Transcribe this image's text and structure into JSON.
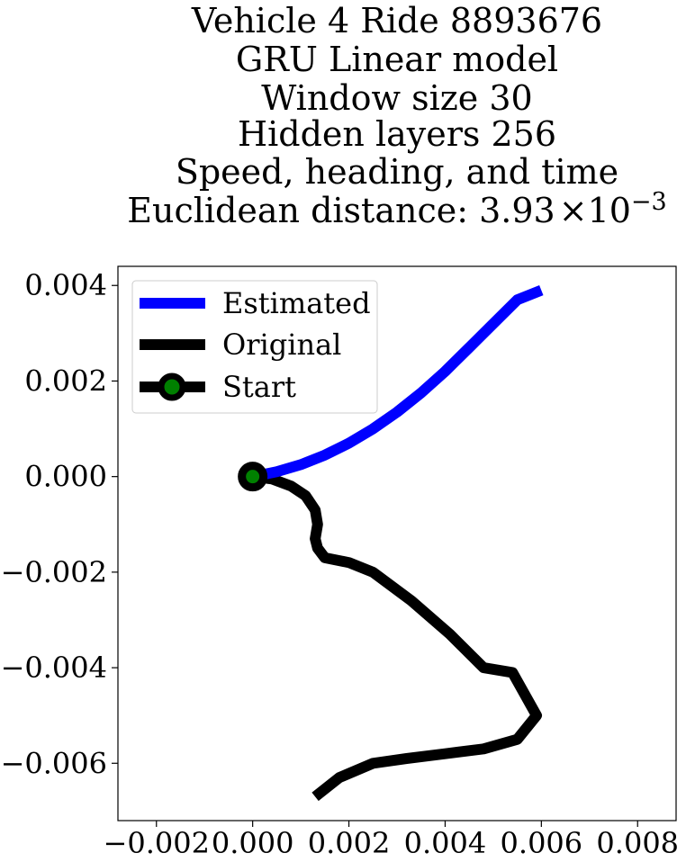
{
  "chart_data": {
    "type": "line",
    "title_lines": [
      "Vehicle 4 Ride 8893676",
      "GRU Linear model",
      "Window size 30",
      "Hidden layers 256",
      "Speed, heading, and time"
    ],
    "title_distance": {
      "prefix": "Euclidean distance: 3.93",
      "times": "×",
      "base": "10",
      "exponent": "−3"
    },
    "xlim": [
      -0.0028,
      0.0088
    ],
    "ylim": [
      -0.0072,
      0.0044
    ],
    "xticks": [
      -0.002,
      0.0,
      0.002,
      0.004,
      0.006,
      0.008
    ],
    "xtick_labels": [
      "−0.002",
      "0.000",
      "0.002",
      "0.004",
      "0.006",
      "0.008"
    ],
    "yticks": [
      0.004,
      0.002,
      0.0,
      -0.002,
      -0.004,
      -0.006
    ],
    "ytick_labels": [
      "0.004",
      "0.002",
      "0.000",
      "−0.002",
      "−0.004",
      "−0.006"
    ],
    "grid": false,
    "legend_position": "upper-left",
    "series": [
      {
        "name": "Estimated",
        "color": "#0000ff",
        "x": [
          0.0,
          0.0005,
          0.001,
          0.0015,
          0.002,
          0.0025,
          0.003,
          0.0035,
          0.004,
          0.0045,
          0.005,
          0.0055,
          0.006
        ],
        "y": [
          0.0,
          0.0001,
          0.00025,
          0.00045,
          0.0007,
          0.001,
          0.00135,
          0.00175,
          0.0022,
          0.0027,
          0.0032,
          0.0037,
          0.0039
        ]
      },
      {
        "name": "Original",
        "color": "#000000",
        "x": [
          0.0,
          0.0004,
          0.0008,
          0.0011,
          0.0013,
          0.00135,
          0.0013,
          0.00135,
          0.0015,
          0.002,
          0.0025,
          0.0033,
          0.0041,
          0.0048,
          0.0054,
          0.0059,
          0.0055,
          0.0048,
          0.004,
          0.0032,
          0.0025,
          0.0018,
          0.0013
        ],
        "y": [
          0.0,
          -5e-05,
          -0.0002,
          -0.0004,
          -0.0007,
          -0.001,
          -0.0013,
          -0.0015,
          -0.0017,
          -0.0018,
          -0.002,
          -0.0026,
          -0.0033,
          -0.004,
          -0.0041,
          -0.005,
          -0.0055,
          -0.0057,
          -0.0058,
          -0.0059,
          -0.006,
          -0.0063,
          -0.0067
        ]
      }
    ],
    "start": {
      "name": "Start",
      "x": 0.0,
      "y": 0.0,
      "marker_edge": "#000000",
      "marker_face": "#008000"
    }
  }
}
